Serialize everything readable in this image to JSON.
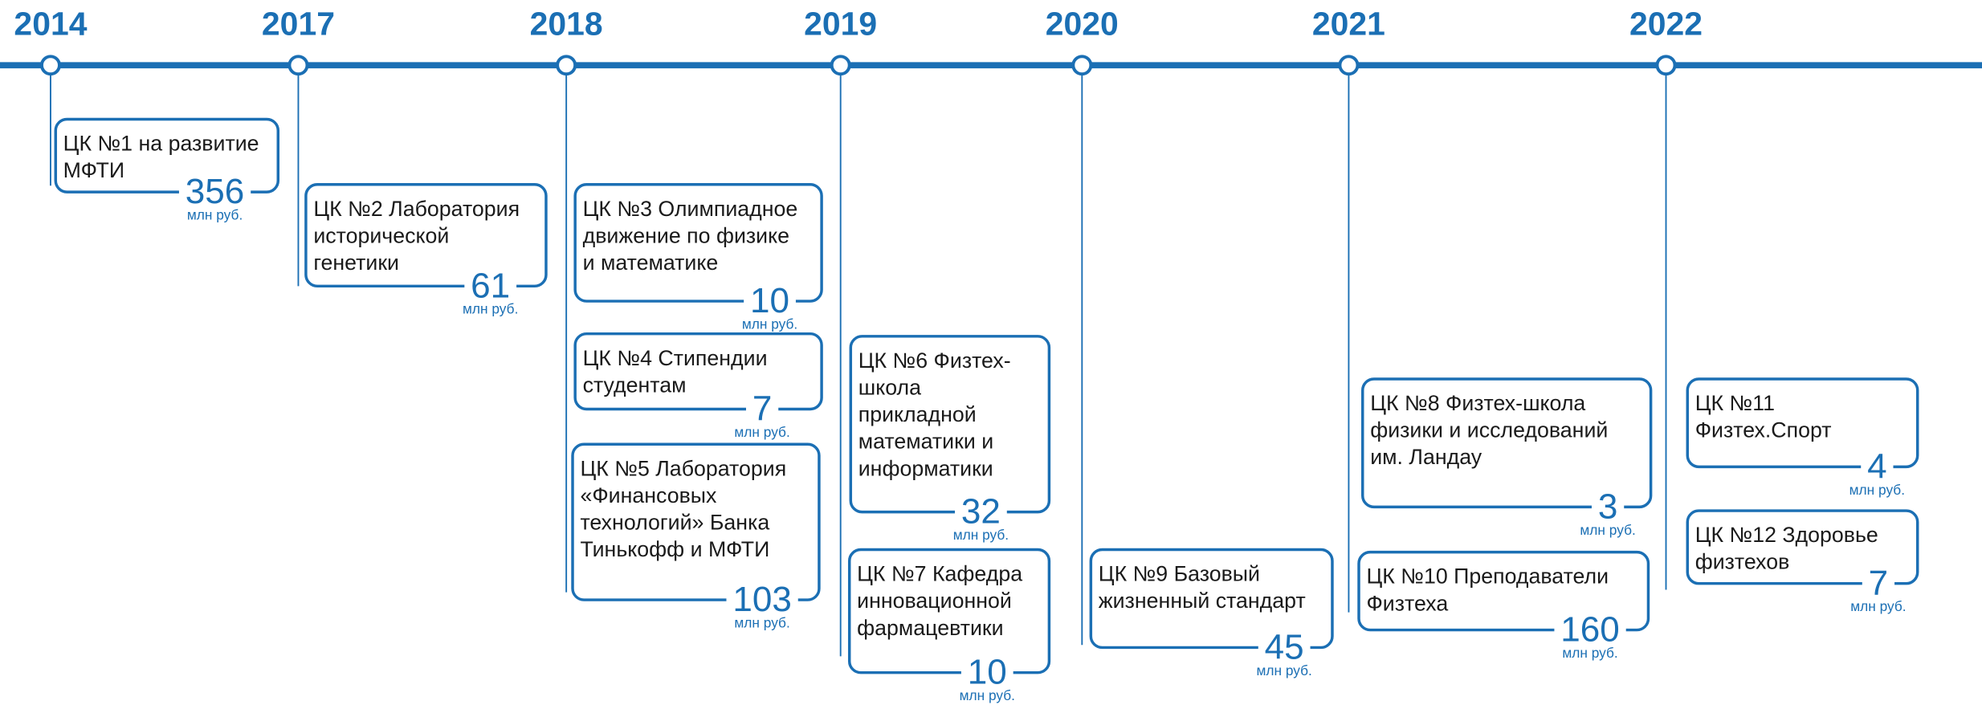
{
  "years": [
    {
      "year": "2014",
      "boxes": [
        {
          "lines": [
            "ЦК №1 на развитие",
            "МФТИ"
          ],
          "amount": 356,
          "unit": "млн руб."
        }
      ]
    },
    {
      "year": "2017",
      "boxes": [
        {
          "lines": [
            "ЦК №2 Лаборатория",
            "исторической",
            "генетики"
          ],
          "amount": 61,
          "unit": "млн руб."
        }
      ]
    },
    {
      "year": "2018",
      "boxes": [
        {
          "lines": [
            "ЦК №3 Олимпиадное",
            "движение по физике",
            "и математике"
          ],
          "amount": 10,
          "unit": "млн руб."
        },
        {
          "lines": [
            "ЦК №4 Стипендии",
            "студентам"
          ],
          "amount": 7,
          "unit": "млн руб."
        },
        {
          "lines": [
            "ЦК №5 Лаборатория",
            "«Финансовых",
            "технологий» Банка",
            "Тинькофф и МФТИ"
          ],
          "amount": 103,
          "unit": "млн руб."
        }
      ]
    },
    {
      "year": "2019",
      "boxes": [
        {
          "lines": [
            "ЦК №6 Физтех-",
            "школа",
            "прикладной",
            "математики и",
            "информатики"
          ],
          "amount": 32,
          "unit": "млн руб."
        },
        {
          "lines": [
            "ЦК №7 Кафедра",
            "инновационной",
            "фармацевтики"
          ],
          "amount": 10,
          "unit": "млн руб."
        }
      ]
    },
    {
      "year": "2020",
      "boxes": [
        {
          "lines": [
            "ЦК №9 Базовый",
            "жизненный стандарт"
          ],
          "amount": 45,
          "unit": "млн руб."
        }
      ]
    },
    {
      "year": "2021",
      "boxes": [
        {
          "lines": [
            "ЦК №8 Физтех-школа",
            "физики и исследований",
            "им. Ландау"
          ],
          "amount": 3,
          "unit": "млн руб."
        },
        {
          "lines": [
            "ЦК №10 Преподаватели",
            "Физтеха"
          ],
          "amount": 160,
          "unit": "млн руб."
        }
      ]
    },
    {
      "year": "2022",
      "boxes": [
        {
          "lines": [
            "ЦК №11",
            "Физтех.Спорт"
          ],
          "amount": 4,
          "unit": "млн руб."
        },
        {
          "lines": [
            "ЦК №12  Здоровье",
            "физтехов"
          ],
          "amount": 7,
          "unit": "млн руб."
        }
      ]
    }
  ]
}
